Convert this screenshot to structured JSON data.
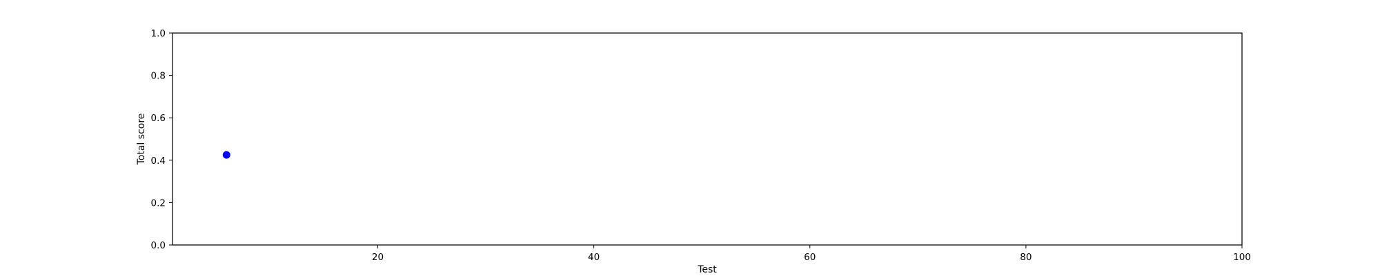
{
  "chart_data": {
    "type": "scatter",
    "title": "",
    "xlabel": "Test",
    "ylabel": "Total score",
    "xlim": [
      1,
      100
    ],
    "ylim": [
      0,
      1
    ],
    "xticks": [
      20,
      40,
      60,
      80,
      100
    ],
    "yticks": [
      0.0,
      0.2,
      0.4,
      0.6,
      0.8,
      1.0
    ],
    "xtick_labels": [
      "20",
      "40",
      "60",
      "80",
      "100"
    ],
    "ytick_labels": [
      "0.0",
      "0.2",
      "0.4",
      "0.6",
      "0.8",
      "1.0"
    ],
    "grid": false,
    "series": [
      {
        "color": "#0000ff",
        "x": [
          6
        ],
        "y": [
          0.425
        ]
      }
    ]
  }
}
